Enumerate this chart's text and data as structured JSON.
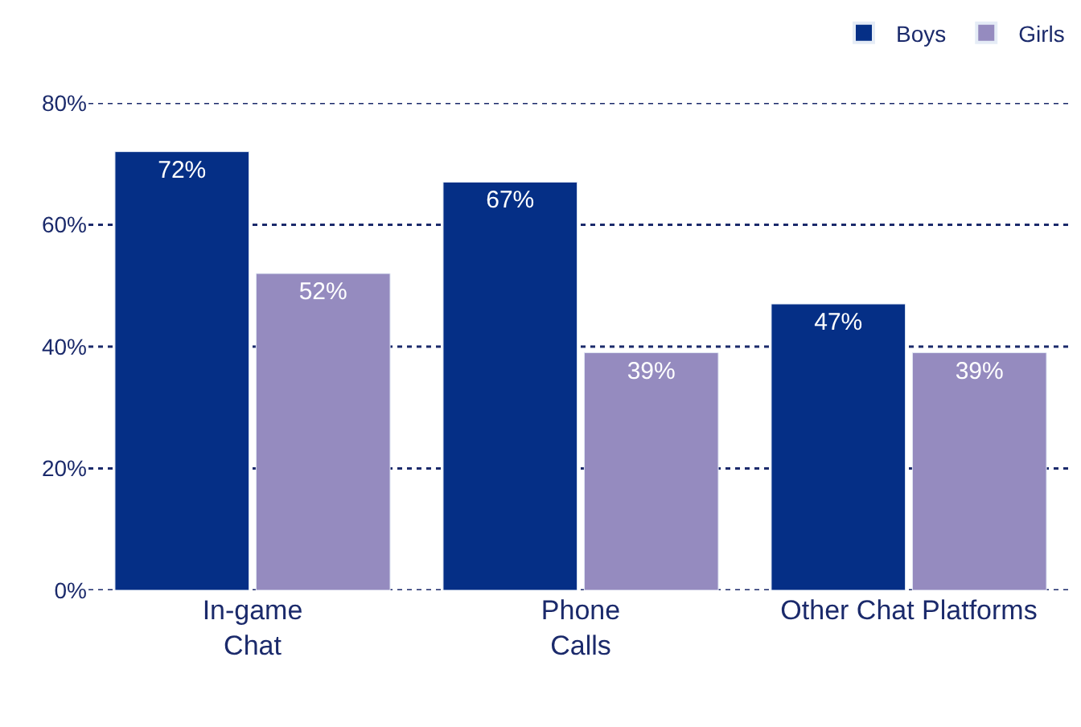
{
  "chart_data": {
    "type": "bar",
    "categories": [
      "In-game\nChat",
      "Phone\nCalls",
      "Other Chat Platforms"
    ],
    "series": [
      {
        "name": "Boys",
        "color": "#052f86",
        "values": [
          72,
          67,
          47
        ],
        "value_labels": [
          "72%",
          "67%",
          "47%"
        ]
      },
      {
        "name": "Girls",
        "color": "#958bbf",
        "values": [
          52,
          39,
          39
        ],
        "value_labels": [
          "52%",
          "39%",
          "39%"
        ]
      }
    ],
    "ylim": [
      0,
      80
    ],
    "yticks": [
      {
        "value": 0,
        "label": "0%"
      },
      {
        "value": 20,
        "label": "20%"
      },
      {
        "value": 40,
        "label": "40%"
      },
      {
        "value": 60,
        "label": "60%"
      },
      {
        "value": 80,
        "label": "80%"
      }
    ],
    "grid": "y",
    "legend": "top right"
  }
}
